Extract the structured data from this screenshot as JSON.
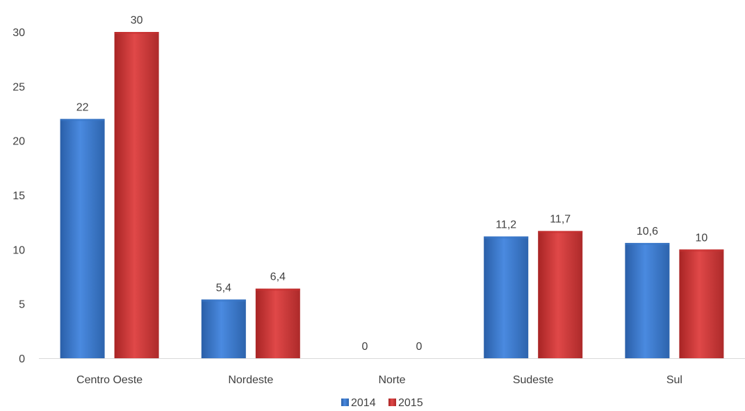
{
  "chart_data": {
    "type": "bar",
    "categories": [
      "Centro Oeste",
      "Nordeste",
      "Norte",
      "Sudeste",
      "Sul"
    ],
    "series": [
      {
        "name": "2014",
        "values": [
          22,
          5.4,
          0,
          11.2,
          10.6
        ],
        "labels": [
          "22",
          "5,4",
          "0",
          "11,2",
          "10,6"
        ],
        "color": "#3b78c8"
      },
      {
        "name": "2015",
        "values": [
          30,
          6.4,
          0,
          11.7,
          10
        ],
        "labels": [
          "30",
          "6,4",
          "0",
          "11,7",
          "10"
        ],
        "color": "#c83232"
      }
    ],
    "ylim": [
      0,
      30
    ],
    "yticks": [
      0,
      5,
      10,
      15,
      20,
      25,
      30
    ],
    "ytick_labels": [
      "0",
      "5",
      "10",
      "15",
      "20",
      "25",
      "30"
    ],
    "grid": false,
    "legend_position": "bottom-center"
  }
}
